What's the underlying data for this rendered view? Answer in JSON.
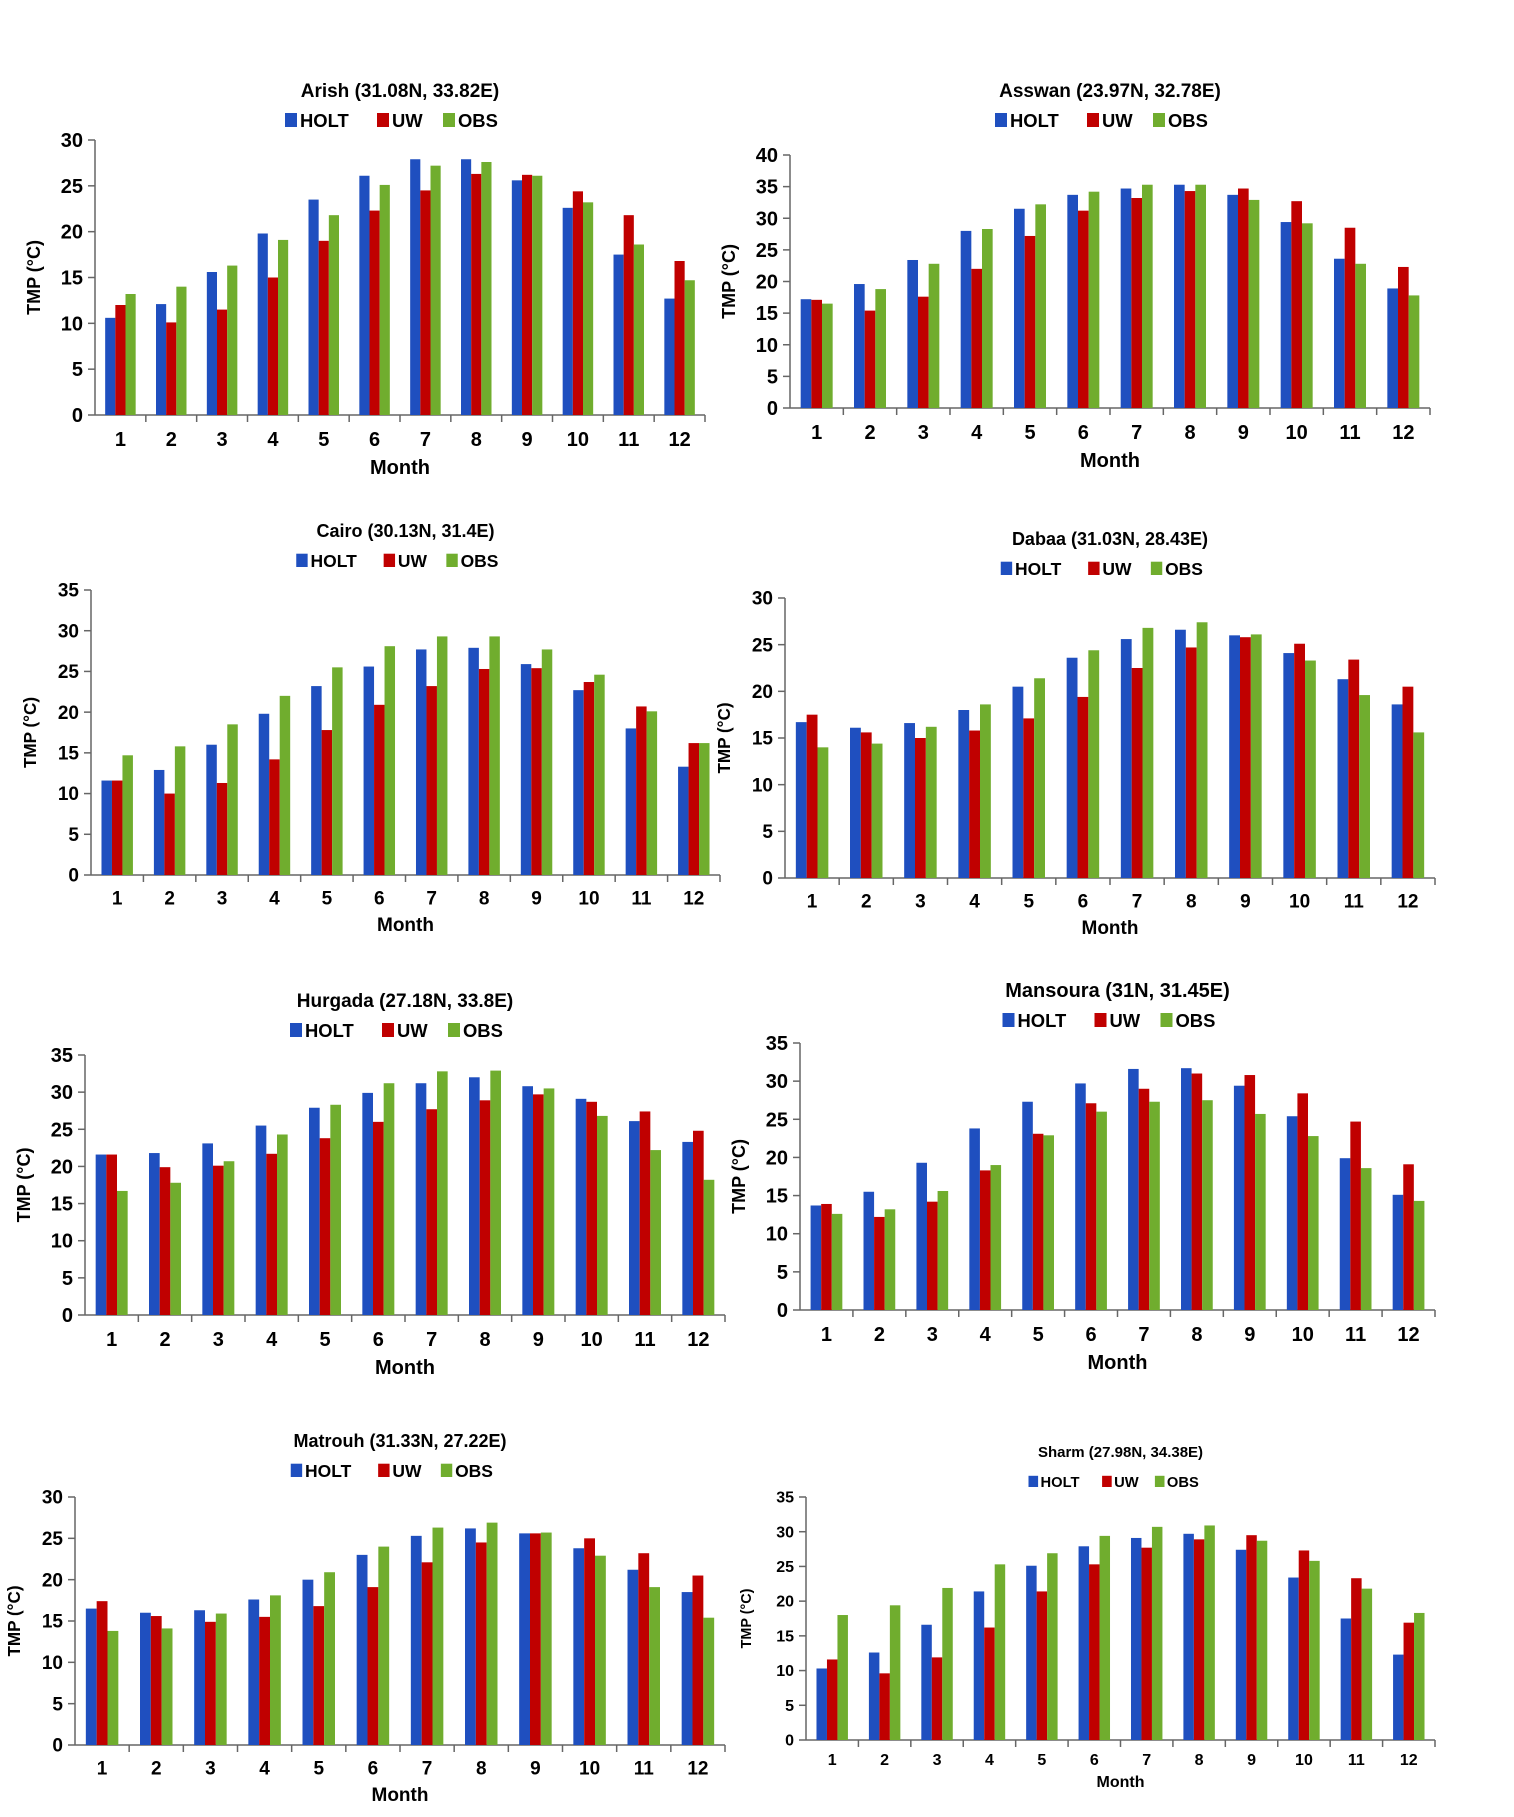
{
  "colors": {
    "HOLT": "#1F4FBF",
    "UW": "#C00000",
    "OBS": "#70AD2E"
  },
  "chart_data": [
    {
      "type": "bar",
      "title": "Arish (31.08N, 33.82E)",
      "xlabel": "Month",
      "ylabel": "TMP (°C)",
      "ylim": [
        0,
        30
      ],
      "ystep": 5,
      "categories": [
        "1",
        "2",
        "3",
        "4",
        "5",
        "6",
        "7",
        "8",
        "9",
        "10",
        "11",
        "12"
      ],
      "series": [
        {
          "name": "HOLT",
          "values": [
            10.6,
            12.1,
            15.6,
            19.8,
            23.5,
            26.1,
            27.9,
            27.9,
            25.6,
            22.6,
            17.5,
            12.7
          ]
        },
        {
          "name": "UW",
          "values": [
            12.0,
            10.1,
            11.5,
            15.0,
            19.0,
            22.3,
            24.5,
            26.3,
            26.2,
            24.4,
            21.8,
            16.8
          ]
        },
        {
          "name": "OBS",
          "values": [
            13.2,
            14.0,
            16.3,
            19.1,
            21.8,
            25.1,
            27.2,
            27.6,
            26.1,
            23.2,
            18.6,
            14.7
          ]
        }
      ],
      "legend": "top"
    },
    {
      "type": "bar",
      "title": "Asswan (23.97N, 32.78E)",
      "xlabel": "Month",
      "ylabel": "TMP (°C)",
      "ylim": [
        0,
        40
      ],
      "ystep": 5,
      "categories": [
        "1",
        "2",
        "3",
        "4",
        "5",
        "6",
        "7",
        "8",
        "9",
        "10",
        "11",
        "12"
      ],
      "series": [
        {
          "name": "HOLT",
          "values": [
            17.2,
            19.6,
            23.4,
            28.0,
            31.5,
            33.7,
            34.7,
            35.3,
            33.7,
            29.4,
            23.6,
            18.9
          ]
        },
        {
          "name": "UW",
          "values": [
            17.1,
            15.4,
            17.6,
            22.0,
            27.2,
            31.2,
            33.2,
            34.3,
            34.7,
            32.7,
            28.5,
            22.3
          ]
        },
        {
          "name": "OBS",
          "values": [
            16.5,
            18.8,
            22.8,
            28.3,
            32.2,
            34.2,
            35.3,
            35.3,
            32.9,
            29.2,
            22.8,
            17.8
          ]
        }
      ],
      "legend": "top"
    },
    {
      "type": "bar",
      "title": "Cairo (30.13N, 31.4E)",
      "xlabel": "Month",
      "ylabel": "TMP (°C)",
      "ylim": [
        0,
        35
      ],
      "ystep": 5,
      "categories": [
        "1",
        "2",
        "3",
        "4",
        "5",
        "6",
        "7",
        "8",
        "9",
        "10",
        "11",
        "12"
      ],
      "series": [
        {
          "name": "HOLT",
          "values": [
            11.6,
            12.9,
            16.0,
            19.8,
            23.2,
            25.6,
            27.7,
            27.9,
            25.9,
            22.7,
            18.0,
            13.3
          ]
        },
        {
          "name": "UW",
          "values": [
            11.6,
            10.0,
            11.3,
            14.2,
            17.8,
            20.9,
            23.2,
            25.3,
            25.4,
            23.7,
            20.7,
            16.2
          ]
        },
        {
          "name": "OBS",
          "values": [
            14.7,
            15.8,
            18.5,
            22.0,
            25.5,
            28.1,
            29.3,
            29.3,
            27.7,
            24.6,
            20.1,
            16.2
          ]
        }
      ],
      "legend": "top"
    },
    {
      "type": "bar",
      "title": "Dabaa (31.03N, 28.43E)",
      "xlabel": "Month",
      "ylabel": "TMP (°C)",
      "ylim": [
        0,
        30
      ],
      "ystep": 5,
      "categories": [
        "1",
        "2",
        "3",
        "4",
        "5",
        "6",
        "7",
        "8",
        "9",
        "10",
        "11",
        "12"
      ],
      "series": [
        {
          "name": "HOLT",
          "values": [
            16.7,
            16.1,
            16.6,
            18.0,
            20.5,
            23.6,
            25.6,
            26.6,
            26.0,
            24.1,
            21.3,
            18.6
          ]
        },
        {
          "name": "UW",
          "values": [
            17.5,
            15.6,
            15.0,
            15.8,
            17.1,
            19.4,
            22.5,
            24.7,
            25.8,
            25.1,
            23.4,
            20.5
          ]
        },
        {
          "name": "OBS",
          "values": [
            14.0,
            14.4,
            16.2,
            18.6,
            21.4,
            24.4,
            26.8,
            27.4,
            26.1,
            23.3,
            19.6,
            15.6
          ]
        }
      ],
      "legend": "top"
    },
    {
      "type": "bar",
      "title": "Hurgada (27.18N, 33.8E)",
      "xlabel": "Month",
      "ylabel": "TMP (°C)",
      "ylim": [
        0,
        35
      ],
      "ystep": 5,
      "categories": [
        "1",
        "2",
        "3",
        "4",
        "5",
        "6",
        "7",
        "8",
        "9",
        "10",
        "11",
        "12"
      ],
      "series": [
        {
          "name": "HOLT",
          "values": [
            21.6,
            21.8,
            23.1,
            25.5,
            27.9,
            29.9,
            31.2,
            32.0,
            30.8,
            29.1,
            26.1,
            23.3
          ]
        },
        {
          "name": "UW",
          "values": [
            21.6,
            19.9,
            20.1,
            21.7,
            23.8,
            26.0,
            27.7,
            28.9,
            29.7,
            28.7,
            27.4,
            24.8
          ]
        },
        {
          "name": "OBS",
          "values": [
            16.7,
            17.8,
            20.7,
            24.3,
            28.3,
            31.2,
            32.8,
            32.9,
            30.5,
            26.8,
            22.2,
            18.2
          ]
        }
      ],
      "legend": "top"
    },
    {
      "type": "bar",
      "title": "Mansoura (31N, 31.45E)",
      "xlabel": "Month",
      "ylabel": "TMP (°C)",
      "ylim": [
        0,
        35
      ],
      "ystep": 5,
      "categories": [
        "1",
        "2",
        "3",
        "4",
        "5",
        "6",
        "7",
        "8",
        "9",
        "10",
        "11",
        "12"
      ],
      "series": [
        {
          "name": "HOLT",
          "values": [
            13.7,
            15.5,
            19.3,
            23.8,
            27.3,
            29.7,
            31.6,
            31.7,
            29.4,
            25.4,
            19.9,
            15.1
          ]
        },
        {
          "name": "UW",
          "values": [
            13.9,
            12.2,
            14.2,
            18.3,
            23.1,
            27.1,
            29.0,
            31.0,
            30.8,
            28.4,
            24.7,
            19.1
          ]
        },
        {
          "name": "OBS",
          "values": [
            12.6,
            13.2,
            15.6,
            19.0,
            22.9,
            26.0,
            27.3,
            27.5,
            25.7,
            22.8,
            18.6,
            14.3
          ]
        }
      ],
      "legend": "top"
    },
    {
      "type": "bar",
      "title": "Matrouh (31.33N, 27.22E)",
      "xlabel": "Month",
      "ylabel": "TMP (°C)",
      "ylim": [
        0,
        30
      ],
      "ystep": 5,
      "categories": [
        "1",
        "2",
        "3",
        "4",
        "5",
        "6",
        "7",
        "8",
        "9",
        "10",
        "11",
        "12"
      ],
      "series": [
        {
          "name": "HOLT",
          "values": [
            16.5,
            16.0,
            16.3,
            17.6,
            20.0,
            23.0,
            25.3,
            26.2,
            25.6,
            23.8,
            21.2,
            18.5
          ]
        },
        {
          "name": "UW",
          "values": [
            17.4,
            15.6,
            14.9,
            15.5,
            16.8,
            19.1,
            22.1,
            24.5,
            25.6,
            25.0,
            23.2,
            20.5
          ]
        },
        {
          "name": "OBS",
          "values": [
            13.8,
            14.1,
            15.9,
            18.1,
            20.9,
            24.0,
            26.3,
            26.9,
            25.7,
            22.9,
            19.1,
            15.4
          ]
        }
      ],
      "legend": "top"
    },
    {
      "type": "bar",
      "title": "Sharm (27.98N, 34.38E)",
      "xlabel": "Month",
      "ylabel": "TMP (°C)",
      "ylim": [
        0,
        35
      ],
      "ystep": 5,
      "categories": [
        "1",
        "2",
        "3",
        "4",
        "5",
        "6",
        "7",
        "8",
        "9",
        "10",
        "11",
        "12"
      ],
      "series": [
        {
          "name": "HOLT",
          "values": [
            10.3,
            12.6,
            16.6,
            21.4,
            25.1,
            27.9,
            29.1,
            29.7,
            27.4,
            23.4,
            17.5,
            12.3
          ]
        },
        {
          "name": "UW",
          "values": [
            11.6,
            9.6,
            11.9,
            16.2,
            21.4,
            25.3,
            27.7,
            28.9,
            29.5,
            27.3,
            23.3,
            16.9
          ]
        },
        {
          "name": "OBS",
          "values": [
            18.0,
            19.4,
            21.9,
            25.3,
            26.9,
            29.4,
            30.7,
            30.9,
            28.7,
            25.8,
            21.8,
            18.3
          ]
        }
      ],
      "legend": "top"
    }
  ]
}
